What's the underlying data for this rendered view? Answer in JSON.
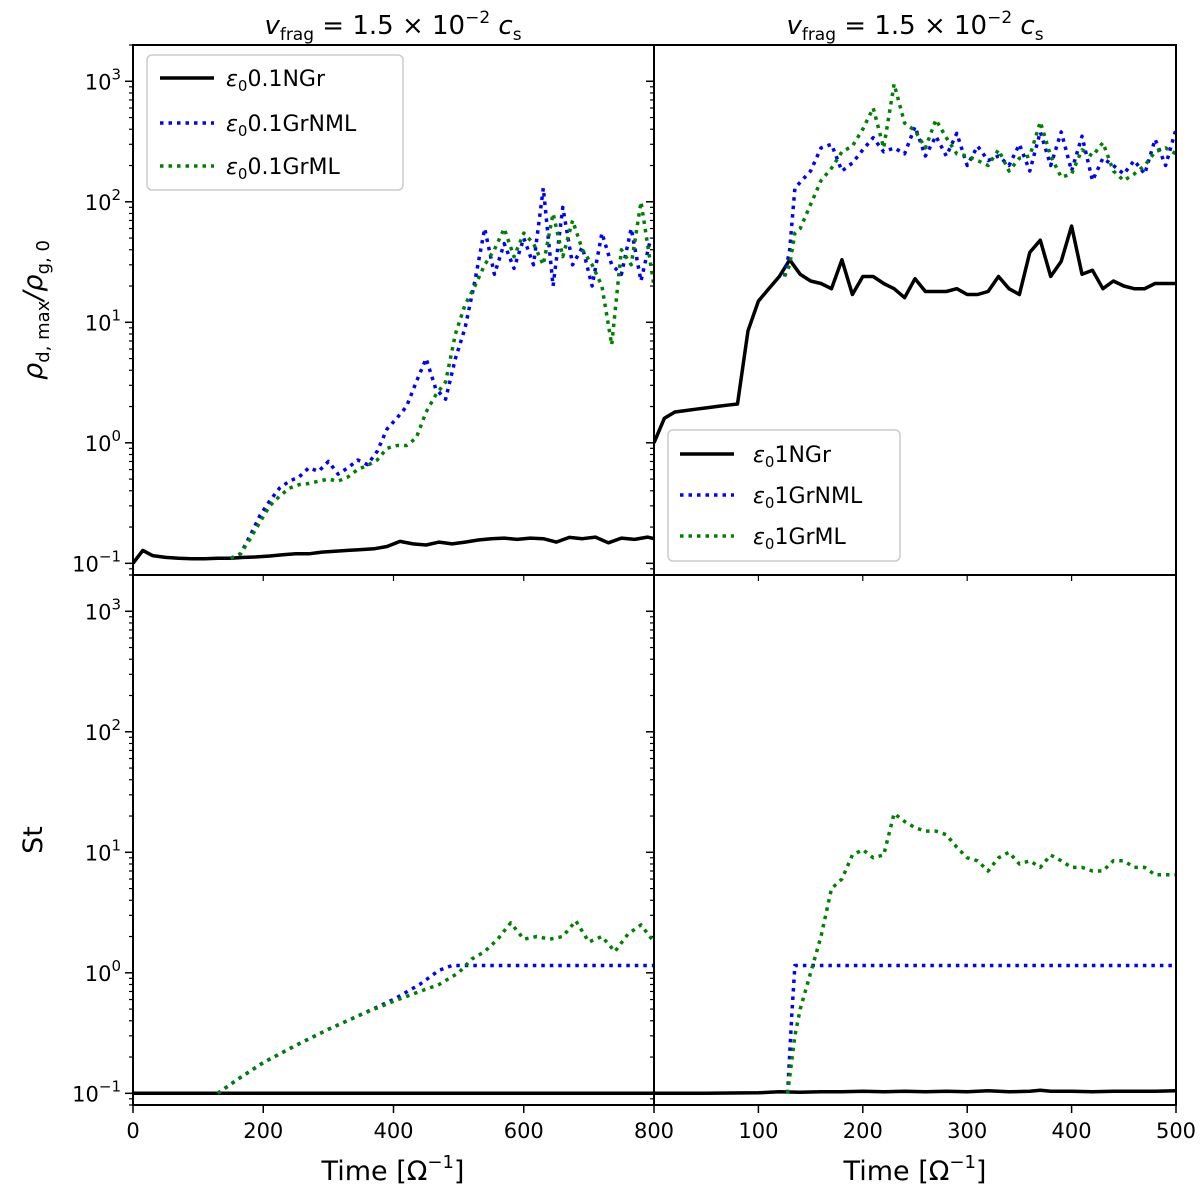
{
  "chart_data": {
    "type": "line",
    "y_scale": "log",
    "ylim": [
      0.08,
      2000
    ],
    "y_ticks": [
      {
        "value": 0.1,
        "base": "10",
        "exp": "−1"
      },
      {
        "value": 1,
        "base": "10",
        "exp": "0"
      },
      {
        "value": 10,
        "base": "10",
        "exp": "1"
      },
      {
        "value": 100,
        "base": "10",
        "exp": "2"
      },
      {
        "value": 1000,
        "base": "10",
        "exp": "3"
      }
    ],
    "titles": {
      "left": {
        "sym": "v",
        "sub": "frag",
        "mid": " = 1.5 × 10",
        "sup": "−2",
        "c": " c",
        "csub": "s"
      },
      "right": {
        "sym": "v",
        "sub": "frag",
        "mid": " = 1.5 × 10",
        "sup": "−2",
        "c": " c",
        "csub": "s"
      }
    },
    "ylabels": {
      "top": {
        "rho": "ρ",
        "sub1": "d, max",
        "slash": "/ρ",
        "sub2": "g, 0"
      },
      "bottom": "St"
    },
    "xlabels": {
      "left": {
        "pre": "Time [Ω",
        "sup": "−1",
        "post": "]"
      },
      "right": {
        "pre": "Time [Ω",
        "sup": "−1",
        "post": "]"
      }
    },
    "x_ticks": {
      "left": [
        "0",
        "200",
        "400",
        "600",
        "800"
      ],
      "right": [
        "100",
        "200",
        "300",
        "400",
        "500"
      ]
    },
    "legends": {
      "top_left": [
        {
          "pre": "ε",
          "sub": "0",
          "label": "0.1NGr",
          "color": "#000000",
          "style": "solid"
        },
        {
          "pre": "ε",
          "sub": "0",
          "label": "0.1GrNML",
          "color": "#0000ff",
          "style": "dotted"
        },
        {
          "pre": "ε",
          "sub": "0",
          "label": "0.1GrML",
          "color": "#008000",
          "style": "dotted"
        }
      ],
      "top_right": [
        {
          "pre": "ε",
          "sub": "0",
          "label": "1NGr",
          "color": "#000000",
          "style": "solid"
        },
        {
          "pre": "ε",
          "sub": "0",
          "label": "1GrNML",
          "color": "#0000ff",
          "style": "dotted"
        },
        {
          "pre": "ε",
          "sub": "0",
          "label": "1GrML",
          "color": "#008000",
          "style": "dotted"
        }
      ]
    },
    "panels": [
      {
        "id": "top-left",
        "xlim": [
          0,
          800
        ],
        "series": [
          {
            "name": "ε0 0.1NGr",
            "color": "#000000",
            "style": "solid",
            "x": [
              0,
              15,
              30,
              50,
              70,
              90,
              110,
              130,
              150,
              170,
              190,
              210,
              230,
              250,
              270,
              290,
              310,
              330,
              350,
              370,
              390,
              410,
              430,
              450,
              470,
              490,
              510,
              530,
              550,
              570,
              590,
              610,
              630,
              650,
              670,
              690,
              710,
              730,
              750,
              770,
              790,
              800
            ],
            "y": [
              0.1,
              0.128,
              0.116,
              0.112,
              0.11,
              0.109,
              0.109,
              0.11,
              0.11,
              0.112,
              0.113,
              0.115,
              0.118,
              0.12,
              0.12,
              0.124,
              0.126,
              0.128,
              0.13,
              0.132,
              0.138,
              0.152,
              0.145,
              0.142,
              0.15,
              0.145,
              0.15,
              0.156,
              0.16,
              0.162,
              0.158,
              0.162,
              0.16,
              0.15,
              0.164,
              0.16,
              0.165,
              0.148,
              0.162,
              0.158,
              0.165,
              0.16
            ]
          },
          {
            "name": "ε0 0.1GrNML",
            "color": "#0000ff",
            "style": "dotted",
            "x": [
              150,
              165,
              180,
              195,
              210,
              225,
              240,
              255,
              270,
              285,
              300,
              315,
              330,
              345,
              360,
              375,
              390,
              405,
              420,
              435,
              450,
              465,
              480,
              495,
              510,
              525,
              540,
              555,
              570,
              585,
              600,
              615,
              630,
              645,
              660,
              675,
              690,
              705,
              720,
              735,
              750,
              765,
              780,
              795
            ],
            "y": [
              0.11,
              0.12,
              0.17,
              0.25,
              0.33,
              0.42,
              0.48,
              0.52,
              0.62,
              0.58,
              0.7,
              0.55,
              0.62,
              0.72,
              0.66,
              0.85,
              1.3,
              1.6,
              2.0,
              3.2,
              5.0,
              2.8,
              2.3,
              5.0,
              9.0,
              22,
              60,
              25,
              45,
              28,
              50,
              30,
              130,
              20,
              90,
              30,
              42,
              20,
              55,
              30,
              25,
              60,
              22,
              50
            ]
          },
          {
            "name": "ε0 0.1GrML",
            "color": "#008000",
            "style": "dotted",
            "x": [
              150,
              165,
              180,
              195,
              210,
              225,
              240,
              255,
              270,
              285,
              300,
              315,
              330,
              345,
              360,
              375,
              390,
              405,
              420,
              435,
              450,
              465,
              480,
              495,
              510,
              525,
              540,
              555,
              570,
              585,
              600,
              615,
              630,
              645,
              660,
              675,
              690,
              705,
              720,
              735,
              750,
              765,
              780,
              795,
              800
            ],
            "y": [
              0.11,
              0.12,
              0.16,
              0.22,
              0.3,
              0.36,
              0.42,
              0.45,
              0.46,
              0.48,
              0.5,
              0.48,
              0.52,
              0.6,
              0.65,
              0.72,
              0.9,
              0.95,
              0.95,
              1.1,
              1.8,
              2.5,
              3.2,
              8.0,
              14,
              20,
              30,
              40,
              60,
              35,
              55,
              45,
              30,
              80,
              35,
              70,
              40,
              30,
              20,
              6.5,
              40,
              30,
              100,
              30,
              20
            ]
          }
        ]
      },
      {
        "id": "top-right",
        "xlim": [
          0,
          500
        ],
        "series": [
          {
            "name": "ε0 1NGr",
            "color": "#000000",
            "style": "solid",
            "x": [
              0,
              10,
              20,
              30,
              40,
              50,
              60,
              70,
              80,
              90,
              100,
              110,
              120,
              130,
              140,
              150,
              160,
              170,
              180,
              190,
              200,
              210,
              220,
              230,
              240,
              250,
              260,
              270,
              280,
              290,
              300,
              310,
              320,
              330,
              340,
              350,
              360,
              370,
              380,
              390,
              400,
              410,
              420,
              430,
              440,
              450,
              460,
              470,
              480,
              490,
              500
            ],
            "y": [
              1.0,
              1.6,
              1.8,
              1.85,
              1.9,
              1.95,
              2.0,
              2.05,
              2.1,
              8.5,
              15,
              19,
              24,
              33,
              25,
              22,
              21,
              19,
              33,
              17,
              24,
              24,
              21,
              19,
              16,
              23,
              18,
              18,
              18,
              19,
              17,
              17,
              18,
              24,
              19,
              17,
              38,
              48,
              24,
              32,
              63,
              25,
              27,
              19,
              22,
              20,
              19,
              19,
              21,
              21,
              21
            ]
          },
          {
            "name": "ε0 1GrNML",
            "color": "#0000ff",
            "style": "dotted",
            "x": [
              125,
              130,
              135,
              140,
              150,
              160,
              170,
              180,
              190,
              200,
              210,
              220,
              230,
              240,
              250,
              260,
              270,
              280,
              290,
              300,
              310,
              320,
              330,
              340,
              350,
              360,
              370,
              380,
              390,
              400,
              410,
              420,
              430,
              440,
              450,
              460,
              470,
              480,
              490,
              500
            ],
            "y": [
              24,
              40,
              130,
              145,
              180,
              280,
              300,
              180,
              210,
              270,
              340,
              260,
              280,
              250,
              420,
              240,
              350,
              240,
              370,
              200,
              290,
              220,
              240,
              200,
              300,
              180,
              380,
              200,
              380,
              180,
              350,
              150,
              230,
              200,
              170,
              220,
              170,
              330,
              200,
              400
            ]
          },
          {
            "name": "ε0 1GrML",
            "color": "#008000",
            "style": "dotted",
            "x": [
              125,
              130,
              135,
              140,
              150,
              160,
              170,
              180,
              190,
              200,
              210,
              220,
              230,
              240,
              250,
              260,
              270,
              280,
              290,
              300,
              310,
              320,
              330,
              340,
              350,
              360,
              370,
              380,
              390,
              400,
              410,
              420,
              430,
              440,
              450,
              460,
              470,
              480,
              490,
              500
            ],
            "y": [
              24,
              30,
              55,
              60,
              95,
              150,
              190,
              260,
              290,
              400,
              600,
              280,
              950,
              450,
              390,
              280,
              480,
              340,
              250,
              240,
              220,
              200,
              270,
              180,
              230,
              240,
              460,
              240,
              160,
              170,
              270,
              240,
              310,
              180,
              150,
              170,
              200,
              260,
              280,
              250
            ]
          }
        ]
      },
      {
        "id": "bottom-left",
        "xlim": [
          0,
          800
        ],
        "series": [
          {
            "name": "ε0 0.1NGr",
            "color": "#000000",
            "style": "solid",
            "x": [
              0,
              800
            ],
            "y": [
              0.1,
              0.1
            ]
          },
          {
            "name": "ε0 0.1GrNML",
            "color": "#0000ff",
            "style": "dotted",
            "x": [
              130,
              160,
              200,
              250,
              300,
              350,
              400,
              440,
              470,
              490,
              520,
              550,
              800
            ],
            "y": [
              0.1,
              0.13,
              0.18,
              0.25,
              0.34,
              0.45,
              0.6,
              0.8,
              1.05,
              1.15,
              1.15,
              1.15,
              1.15
            ]
          },
          {
            "name": "ε0 0.1GrML",
            "color": "#008000",
            "style": "dotted",
            "x": [
              130,
              160,
              200,
              250,
              300,
              350,
              400,
              440,
              470,
              500,
              520,
              540,
              560,
              580,
              600,
              620,
              640,
              660,
              680,
              700,
              720,
              740,
              760,
              780,
              800
            ],
            "y": [
              0.1,
              0.13,
              0.18,
              0.25,
              0.34,
              0.45,
              0.58,
              0.7,
              0.8,
              1.0,
              1.3,
              1.5,
              1.9,
              2.6,
              1.9,
              2.0,
              1.9,
              2.0,
              2.7,
              1.8,
              2.0,
              1.5,
              2.1,
              2.5,
              1.8
            ]
          }
        ]
      },
      {
        "id": "bottom-right",
        "xlim": [
          0,
          500
        ],
        "series": [
          {
            "name": "ε0 1NGr",
            "color": "#000000",
            "style": "solid",
            "x": [
              0,
              50,
              100,
              120,
              140,
              160,
              180,
              200,
              220,
              240,
              260,
              280,
              300,
              320,
              340,
              360,
              370,
              380,
              400,
              420,
              440,
              460,
              480,
              500
            ],
            "y": [
              0.1,
              0.1,
              0.101,
              0.103,
              0.102,
              0.103,
              0.103,
              0.104,
              0.103,
              0.104,
              0.103,
              0.104,
              0.103,
              0.105,
              0.103,
              0.104,
              0.106,
              0.104,
              0.104,
              0.103,
              0.104,
              0.104,
              0.104,
              0.105
            ]
          },
          {
            "name": "ε0 1GrNML",
            "color": "#0000ff",
            "style": "dotted",
            "x": [
              128,
              132,
              135,
              500
            ],
            "y": [
              0.1,
              0.45,
              1.15,
              1.15
            ]
          },
          {
            "name": "ε0 1GrML",
            "color": "#008000",
            "style": "dotted",
            "x": [
              128,
              135,
              140,
              150,
              160,
              170,
              180,
              190,
              200,
              210,
              220,
              230,
              240,
              250,
              260,
              270,
              280,
              290,
              300,
              310,
              320,
              330,
              340,
              350,
              360,
              370,
              380,
              390,
              400,
              410,
              420,
              430,
              440,
              450,
              460,
              470,
              480,
              490,
              500
            ],
            "y": [
              0.1,
              0.3,
              0.5,
              1.0,
              2.0,
              5.0,
              6.0,
              9.5,
              10.5,
              9.0,
              9.5,
              21,
              18,
              16,
              15,
              15,
              14,
              11,
              9,
              8.5,
              7,
              9,
              10,
              8,
              8.5,
              7.5,
              9.5,
              8.5,
              7.5,
              7.5,
              7,
              7,
              8.5,
              8.5,
              7.5,
              7.5,
              6.5,
              6.5,
              6.5
            ]
          }
        ]
      }
    ]
  }
}
